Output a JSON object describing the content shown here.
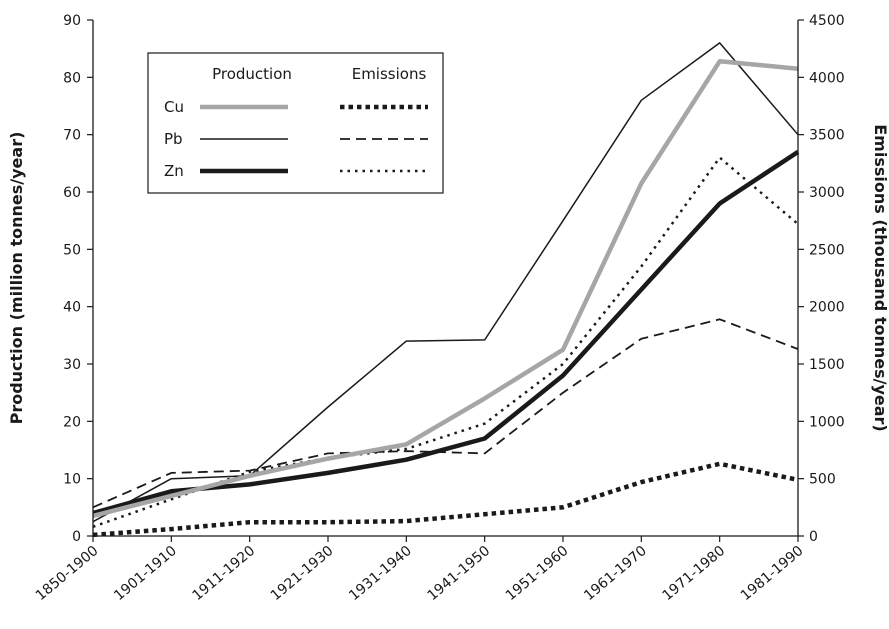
{
  "chart_data": {
    "type": "line",
    "categories": [
      "1850-1900",
      "1901-1910",
      "1911-1920",
      "1921-1930",
      "1931-1940",
      "1941-1950",
      "1951-1960",
      "1961-1970",
      "1971-1980",
      "1981-1990"
    ],
    "y_left": {
      "label": "Production (million tonnes/year)",
      "ylim": [
        0,
        90
      ],
      "ticks": [
        0,
        10,
        20,
        30,
        40,
        50,
        60,
        70,
        80,
        90
      ]
    },
    "y_right": {
      "label": "Emissions (thousand tonnes/year)",
      "ylim": [
        0,
        4500
      ],
      "ticks": [
        0,
        500,
        1000,
        1500,
        2000,
        2500,
        3000,
        3500,
        4000,
        4500
      ]
    },
    "legend": {
      "production_header": "Production",
      "emissions_header": "Emissions",
      "metals": [
        "Cu",
        "Pb",
        "Zn"
      ]
    },
    "series": [
      {
        "name": "Cu",
        "metric": "Production",
        "axis": "left",
        "color": "#a6a6a6",
        "dash": "solid",
        "width": 4.5,
        "values": [
          3.5,
          7.0,
          10.5,
          13.5,
          16.0,
          24.0,
          32.5,
          61.5,
          82.8,
          81.5
        ]
      },
      {
        "name": "Pb",
        "metric": "Production",
        "axis": "left",
        "color": "#1a1a1a",
        "dash": "solid",
        "width": 1.5,
        "values": [
          2.5,
          10.0,
          10.5,
          22.5,
          34.0,
          34.2,
          55.0,
          76.0,
          86.0,
          70.0
        ]
      },
      {
        "name": "Zn",
        "metric": "Production",
        "axis": "left",
        "color": "#1a1a1a",
        "dash": "solid",
        "width": 4.5,
        "values": [
          4.0,
          7.8,
          9.0,
          11.0,
          13.3,
          17.0,
          28.0,
          43.0,
          58.0,
          67.0
        ]
      },
      {
        "name": "Cu",
        "metric": "Emissions",
        "axis": "right",
        "color": "#1a1a1a",
        "dash": "dotted-thick",
        "width": 4.5,
        "values": [
          10,
          60,
          120,
          120,
          130,
          190,
          250,
          470,
          630,
          490
        ]
      },
      {
        "name": "Pb",
        "metric": "Emissions",
        "axis": "right",
        "color": "#1a1a1a",
        "dash": "dashed",
        "width": 1.8,
        "values": [
          250,
          550,
          570,
          720,
          740,
          720,
          1250,
          1720,
          1890,
          1630
        ]
      },
      {
        "name": "Zn",
        "metric": "Emissions",
        "axis": "right",
        "color": "#1a1a1a",
        "dash": "dotted",
        "width": 2.5,
        "values": [
          80,
          320,
          560,
          680,
          760,
          980,
          1500,
          2350,
          3300,
          2720
        ]
      }
    ]
  }
}
